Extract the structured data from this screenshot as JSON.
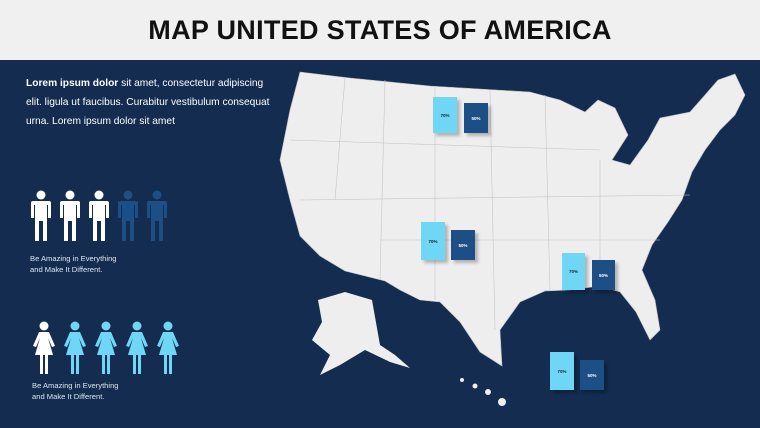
{
  "header": {
    "title": "MAP UNITED STATES OF AMERICA"
  },
  "intro": {
    "bold": "Lorem ipsum dolor",
    "text": " sit amet, consectetur adipiscing elit. ligula ut faucibus. Curabitur vestibulum consequat urna. Lorem ipsum dolor sit amet"
  },
  "men": {
    "filled": 3,
    "total": 5,
    "caption_line1": "Be Amazing in Everything",
    "caption_line2": "and Make It Different."
  },
  "women": {
    "filled": 4,
    "total": 5,
    "caption_line1": "Be Amazing in Everything",
    "caption_line2": "and Make It Different."
  },
  "colors": {
    "navy": "#132c4f",
    "light": "#6fd6f5",
    "dark": "#1c4f86"
  },
  "bars": [
    {
      "a": "70%",
      "b": "50%"
    },
    {
      "a": "70%",
      "b": "50%"
    },
    {
      "a": "70%",
      "b": "50%"
    },
    {
      "a": "70%",
      "b": "50%"
    }
  ]
}
